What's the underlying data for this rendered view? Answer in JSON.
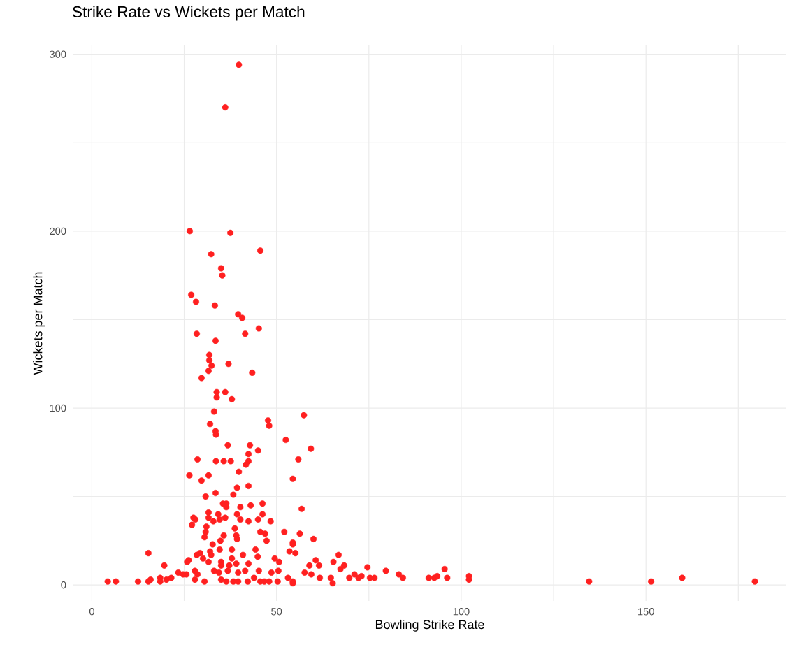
{
  "chart_data": {
    "type": "scatter",
    "title": "Strike Rate vs Wickets per Match",
    "xlabel": "Bowling Strike Rate",
    "ylabel": "Wickets per Match",
    "x": [
      39.8,
      36.1,
      26.5,
      37.5,
      32.3,
      45.6,
      35.0,
      35.3,
      26.9,
      28.2,
      33.3,
      39.6,
      40.7,
      45.2,
      28.4,
      41.5,
      33.5,
      31.8,
      31.8,
      32.4,
      31.6,
      37.0,
      43.4,
      29.7,
      33.8,
      33.8,
      36.1,
      37.9,
      33.1,
      47.7,
      48.0,
      57.4,
      32.0,
      33.5,
      33.6,
      52.5,
      59.3,
      36.8,
      42.8,
      42.4,
      45.0,
      55.9,
      28.6,
      33.6,
      35.7,
      37.6,
      42.4,
      41.7,
      39.8,
      26.4,
      29.7,
      31.6,
      54.4,
      39.3,
      42.4,
      30.8,
      33.5,
      38.3,
      35.5,
      36.4,
      36.4,
      40.2,
      43.0,
      46.2,
      56.8,
      31.6,
      34.2,
      36.1,
      39.3,
      46.2,
      27.5,
      28.0,
      27.1,
      31.6,
      32.9,
      34.6,
      40.2,
      42.4,
      45.0,
      48.4,
      31.0,
      38.7,
      30.8,
      45.6,
      46.9,
      52.1,
      56.3,
      60.0,
      35.7,
      39.1,
      39.3,
      30.5,
      34.8,
      47.3,
      54.4,
      54.4,
      32.7,
      15.3,
      37.9,
      34.6,
      44.3,
      32.0,
      32.3,
      29.3,
      28.4,
      30.1,
      40.9,
      44.9,
      53.5,
      55.1,
      66.8,
      26.2,
      25.8,
      37.9,
      35.0,
      31.6,
      49.5,
      50.7,
      60.6,
      58.9,
      61.5,
      65.4,
      19.6,
      35.0,
      37.2,
      39.1,
      42.4,
      67.3,
      23.4,
      24.7,
      25.6,
      27.9,
      28.6,
      33.1,
      34.4,
      36.8,
      39.6,
      41.5,
      45.2,
      48.6,
      50.5,
      57.6,
      59.4,
      61.7,
      64.7,
      4.3,
      6.5,
      12.5,
      15.3,
      15.9,
      18.5,
      18.5,
      20.2,
      21.5,
      27.9,
      30.5,
      35.0,
      36.4,
      38.3,
      39.6,
      42.2,
      43.9,
      45.6,
      46.7,
      48.0,
      50.3,
      53.1,
      54.4,
      54.4,
      65.2,
      68.3,
      69.7,
      71.1,
      72.2,
      73.0,
      74.6,
      75.3,
      76.5,
      79.6,
      83.1,
      84.2,
      91.2,
      92.7,
      93.5,
      95.5,
      96.2,
      102.1,
      102.1,
      134.6,
      151.4,
      159.8,
      179.5
    ],
    "values": [
      294,
      270,
      200,
      199,
      187,
      189,
      179,
      175,
      164,
      160,
      158,
      153,
      151,
      145,
      142,
      142,
      138,
      130,
      127,
      124,
      121,
      125,
      120,
      117,
      109,
      106,
      109,
      105,
      98,
      93,
      90,
      96,
      91,
      87,
      85,
      82,
      77,
      79,
      79,
      74,
      76,
      71,
      71,
      70,
      70,
      70,
      70,
      68,
      64,
      62,
      59,
      62,
      60,
      55,
      56,
      50,
      52,
      51,
      46,
      46,
      44,
      44,
      45,
      46,
      43,
      41,
      40,
      38,
      40,
      40,
      38,
      37,
      34,
      38,
      36,
      37,
      37,
      36,
      37,
      36,
      33,
      32,
      30,
      30,
      29,
      30,
      29,
      26,
      28,
      28,
      26,
      27,
      25,
      25,
      24,
      23,
      23,
      18,
      20,
      20,
      20,
      19,
      17,
      18,
      17,
      15,
      17,
      16,
      19,
      18,
      17,
      14,
      13,
      15,
      13,
      13,
      15,
      13,
      14,
      11,
      11,
      13,
      11,
      11,
      11,
      12,
      12,
      9,
      7,
      6,
      6,
      8,
      6,
      8,
      7,
      8,
      7,
      8,
      8,
      7,
      8,
      7,
      6,
      4,
      4,
      2,
      2,
      2,
      2,
      3,
      4,
      2,
      3,
      4,
      3,
      2,
      3,
      2,
      2,
      2,
      2,
      4,
      2,
      2,
      2,
      2,
      4,
      2,
      1,
      1,
      11,
      4,
      6,
      4,
      5,
      10,
      4,
      4,
      8,
      6,
      4,
      4,
      4,
      5,
      9,
      4,
      5,
      3,
      2,
      2,
      4,
      2
    ],
    "color": "#ff2020",
    "marker": "circle",
    "grid": true,
    "xlim": [
      -5,
      188
    ],
    "ylim": [
      -9,
      305
    ],
    "xticks": [
      0,
      {
        "value": 25,
        "label": null
      },
      50,
      {
        "value": 75,
        "label": null
      },
      100,
      {
        "value": 125,
        "label": null
      },
      150,
      {
        "value": 175,
        "label": null
      }
    ],
    "yticks": [
      0,
      {
        "value": 50,
        "label": null
      },
      100,
      {
        "value": 150,
        "label": null
      },
      200,
      {
        "value": 250,
        "label": null
      },
      300
    ]
  }
}
